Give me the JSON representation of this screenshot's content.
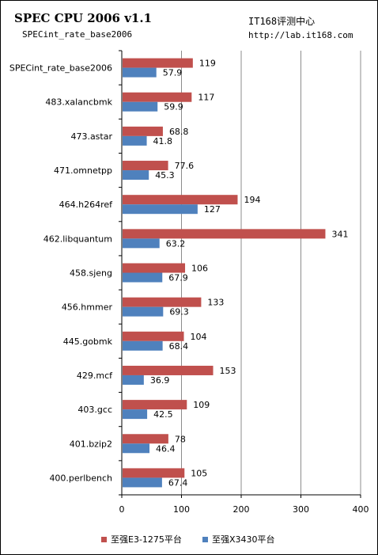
{
  "header": {
    "title": "SPEC CPU 2006 v1.1",
    "subtitle": "SPECint_rate_base2006",
    "brand": "IT168评测中心",
    "url": "http://lab.it168.com"
  },
  "chart_data": {
    "type": "bar",
    "orientation": "horizontal",
    "categories": [
      "SPECint_rate_base2006",
      "483.xalancbmk",
      "473.astar",
      "471.omnetpp",
      "464.h264ref",
      "462.libquantum",
      "458.sjeng",
      "456.hmmer",
      "445.gobmk",
      "429.mcf",
      "403.gcc",
      "401.bzip2",
      "400.perlbench"
    ],
    "series": [
      {
        "name": "至强E3-1275平台",
        "color": "#c0504d",
        "values": [
          119,
          117,
          68.8,
          77.6,
          194,
          341,
          106,
          133,
          104,
          153,
          109,
          78,
          105
        ],
        "labels": [
          "119",
          "117",
          "68.8",
          "77.6",
          "194",
          "341",
          "106",
          "133",
          "104",
          "153",
          "109",
          "78",
          "105"
        ]
      },
      {
        "name": "至强X3430平台",
        "color": "#4f81bd",
        "values": [
          57.9,
          59.9,
          41.8,
          45.3,
          127,
          63.2,
          67.9,
          69.3,
          68.4,
          36.9,
          42.5,
          46.4,
          67.4
        ],
        "labels": [
          "57.9",
          "59.9",
          "41.8",
          "45.3",
          "127",
          "63.2",
          "67.9",
          "69.3",
          "68.4",
          "36.9",
          "42.5",
          "46.4",
          "67.4"
        ]
      }
    ],
    "xlim": [
      0,
      400
    ],
    "xticks": [
      "0",
      "100",
      "200",
      "300",
      "400"
    ],
    "grid": true,
    "legend_position": "bottom"
  }
}
